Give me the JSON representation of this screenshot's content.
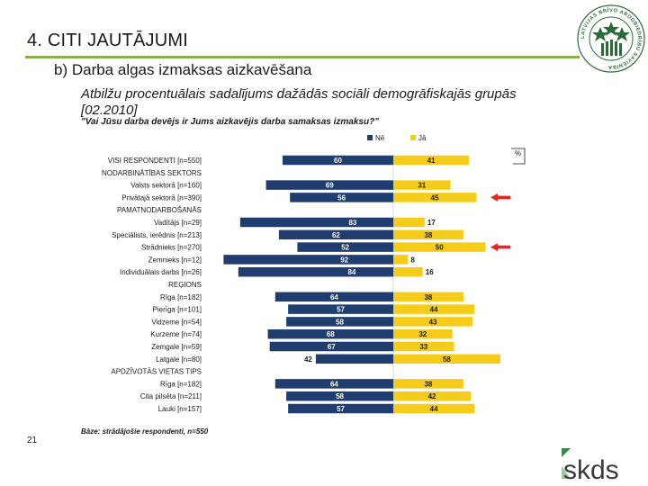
{
  "slide": {
    "title": "4. CITI JAUTĀJUMI",
    "subtitle": "b) Darba algas izmaksas aizkavēšana",
    "description": "Atbilžu procentuālais sadalījums dažādās sociāli demogrāfiskajās grupās",
    "period": "[02.2010]",
    "question": "\"Vai Jūsu darba devējs ir Jums aizkavējis darba samaksas izmaksu?\"",
    "base_note": "Bāze: strādājošie respondenti, n=550",
    "page_number": "21",
    "logo_text": "LATVIJAS BRĪVO ARODBIEDRĪBU SAVIENĪBA",
    "brand": "skds",
    "percent_marker": "%",
    "colors": {
      "ne": "#1f3d6e",
      "ja": "#f5cc1a",
      "accent_line": "#8ab04a",
      "arrow": "#e32626",
      "logo": "#2e6b3a"
    }
  },
  "chart_data": {
    "type": "bar",
    "orientation": "horizontal-diverging",
    "title": "\"Vai Jūsu darba devējs ir Jums aizkavējis darba samaksas izmaksu?\"",
    "unit": "%",
    "xlim": [
      -100,
      100
    ],
    "series_order": [
      "Nē",
      "Jā"
    ],
    "rows": [
      {
        "label": "VISI RESPONDENTI [n=550]",
        "ne": 60,
        "ja": 41
      },
      {
        "label": "NODARBINĀTĪBAS SEKTORS",
        "ne": null,
        "ja": null
      },
      {
        "label": "Valsts sektorā [n=160]",
        "ne": 69,
        "ja": 31
      },
      {
        "label": "Privātajā sektorā [n=390]",
        "ne": 56,
        "ja": 45,
        "arrow": true
      },
      {
        "label": "PAMATNODARBOŠANĀS",
        "ne": null,
        "ja": null
      },
      {
        "label": "Vadītājs [n=29]",
        "ne": 83,
        "ja": 17
      },
      {
        "label": "Speciālists, ierēdnis [n=213]",
        "ne": 62,
        "ja": 38
      },
      {
        "label": "Strādnieks [n=270]",
        "ne": 52,
        "ja": 50,
        "arrow": true
      },
      {
        "label": "Zemnieks [n=12]",
        "ne": 92,
        "ja": 8
      },
      {
        "label": "Individuālais darbs [n=26]",
        "ne": 84,
        "ja": 16
      },
      {
        "label": "REĢIONS",
        "ne": null,
        "ja": null
      },
      {
        "label": "Rīga [n=182]",
        "ne": 64,
        "ja": 38
      },
      {
        "label": "Pierīga [n=101]",
        "ne": 57,
        "ja": 44
      },
      {
        "label": "Vidzeme [n=54]",
        "ne": 58,
        "ja": 43
      },
      {
        "label": "Kurzeme [n=74]",
        "ne": 68,
        "ja": 32
      },
      {
        "label": "Zemgale [n=59]",
        "ne": 67,
        "ja": 33
      },
      {
        "label": "Latgale [n=80]",
        "ne": 42,
        "ja": 58
      },
      {
        "label": "APDZĪVOTĀS VIETAS TIPS",
        "ne": null,
        "ja": null
      },
      {
        "label": "Rīga [n=182]",
        "ne": 64,
        "ja": 38
      },
      {
        "label": "Cita pilsēta [n=211]",
        "ne": 58,
        "ja": 42
      },
      {
        "label": "Lauki [n=157]",
        "ne": 57,
        "ja": 44
      }
    ],
    "legend": [
      {
        "name": "Nē",
        "color": "#1f3d6e"
      },
      {
        "name": "Jā",
        "color": "#f5cc1a"
      }
    ],
    "legend_position": "top-right"
  }
}
